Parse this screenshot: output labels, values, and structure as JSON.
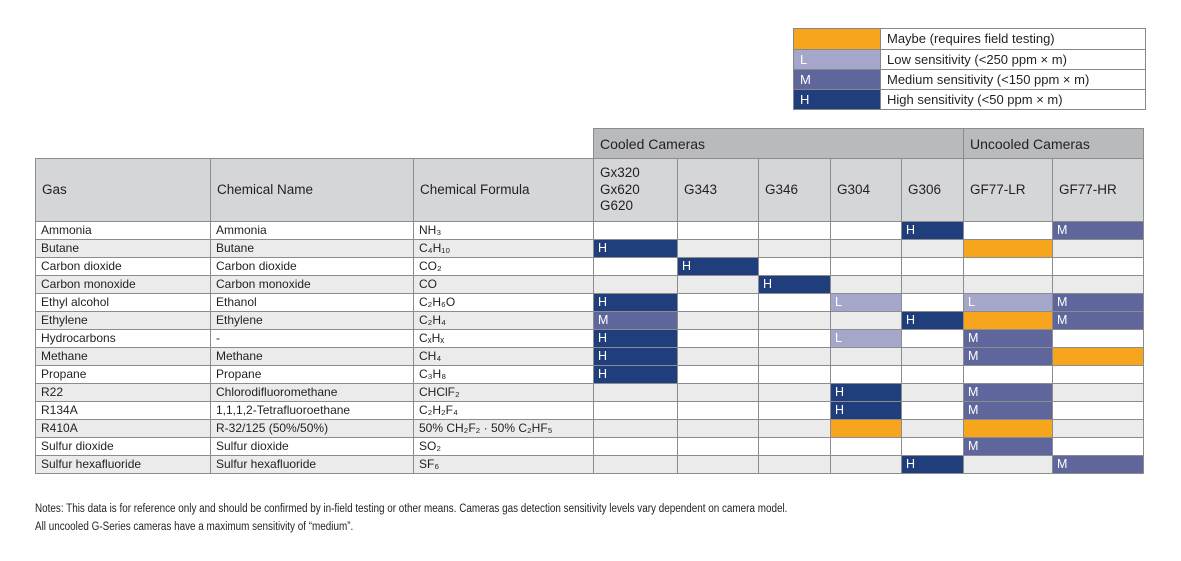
{
  "legend": {
    "items": [
      {
        "code": "MAYBE",
        "letter": "",
        "color": "#F7A51C",
        "label": "Maybe (requires field testing)"
      },
      {
        "code": "L",
        "letter": "L",
        "color": "#A5A7CA",
        "label": "Low sensitivity (<250 ppm × m)"
      },
      {
        "code": "M",
        "letter": "M",
        "color": "#5F669C",
        "label": "Medium sensitivity (<150 ppm × m)"
      },
      {
        "code": "H",
        "letter": "H",
        "color": "#203D7C",
        "label": "High sensitivity (<50 ppm × m)"
      }
    ]
  },
  "table": {
    "group_headers": [
      {
        "label": "Cooled Cameras",
        "span": 5
      },
      {
        "label": "Uncooled Cameras",
        "span": 2
      }
    ],
    "columns": [
      "Gas",
      "Chemical Name",
      "Chemical Formula"
    ],
    "camera_columns": [
      "Gx320\nGx620\nG620",
      "G343",
      "G346",
      "G304",
      "G306",
      "GF77-LR",
      "GF77-HR"
    ],
    "rows": [
      {
        "gas": "Ammonia",
        "chemical_name": "Ammonia",
        "formula": "NH₃",
        "sensitivities": [
          "",
          "",
          "",
          "",
          "H",
          "",
          "M"
        ]
      },
      {
        "gas": "Butane",
        "chemical_name": "Butane",
        "formula": "C₄H₁₀",
        "sensitivities": [
          "H",
          "",
          "",
          "",
          "",
          "MAYBE",
          ""
        ]
      },
      {
        "gas": "Carbon dioxide",
        "chemical_name": "Carbon dioxide",
        "formula": "CO₂",
        "sensitivities": [
          "",
          "H",
          "",
          "",
          "",
          "",
          ""
        ]
      },
      {
        "gas": "Carbon monoxide",
        "chemical_name": "Carbon monoxide",
        "formula": "CO",
        "sensitivities": [
          "",
          "",
          "H",
          "",
          "",
          "",
          ""
        ]
      },
      {
        "gas": "Ethyl alcohol",
        "chemical_name": "Ethanol",
        "formula": "C₂H₆O",
        "sensitivities": [
          "H",
          "",
          "",
          "L",
          "",
          "L",
          "M"
        ]
      },
      {
        "gas": "Ethylene",
        "chemical_name": "Ethylene",
        "formula": "C₂H₄",
        "sensitivities": [
          "M",
          "",
          "",
          "",
          "H",
          "MAYBE",
          "M"
        ]
      },
      {
        "gas": "Hydrocarbons",
        "chemical_name": "-",
        "formula": "CₓHₓ",
        "sensitivities": [
          "H",
          "",
          "",
          "L",
          "",
          "M",
          ""
        ]
      },
      {
        "gas": "Methane",
        "chemical_name": "Methane",
        "formula": "CH₄",
        "sensitivities": [
          "H",
          "",
          "",
          "",
          "",
          "M",
          "MAYBE"
        ]
      },
      {
        "gas": "Propane",
        "chemical_name": "Propane",
        "formula": "C₃H₈",
        "sensitivities": [
          "H",
          "",
          "",
          "",
          "",
          "",
          ""
        ]
      },
      {
        "gas": "R22",
        "chemical_name": "Chlorodifluoromethane",
        "formula": "CHClF₂",
        "sensitivities": [
          "",
          "",
          "",
          "H",
          "",
          "M",
          ""
        ]
      },
      {
        "gas": "R134A",
        "chemical_name": "1,1,1,2-Tetrafluoroethane",
        "formula": "C₂H₂F₄",
        "sensitivities": [
          "",
          "",
          "",
          "H",
          "",
          "M",
          ""
        ]
      },
      {
        "gas": "R410A",
        "chemical_name": "R-32/125 (50%/50%)",
        "formula": "50% CH₂F₂ · 50% C₂HF₅",
        "sensitivities": [
          "",
          "",
          "",
          "MAYBE",
          "",
          "MAYBE",
          ""
        ]
      },
      {
        "gas": "Sulfur dioxide",
        "chemical_name": "Sulfur dioxide",
        "formula": "SO₂",
        "sensitivities": [
          "",
          "",
          "",
          "",
          "",
          "M",
          ""
        ]
      },
      {
        "gas": "Sulfur hexafluoride",
        "chemical_name": "Sulfur hexafluoride",
        "formula": "SF₆",
        "sensitivities": [
          "",
          "",
          "",
          "",
          "H",
          "",
          "M"
        ]
      }
    ]
  },
  "notes": {
    "line1": "Notes: This data is for reference only and should be confirmed by in-field testing or other means. Cameras gas detection sensitivity levels vary dependent on camera model.",
    "line2": "All uncooled G-Series cameras have a maximum sensitivity of “medium”."
  }
}
